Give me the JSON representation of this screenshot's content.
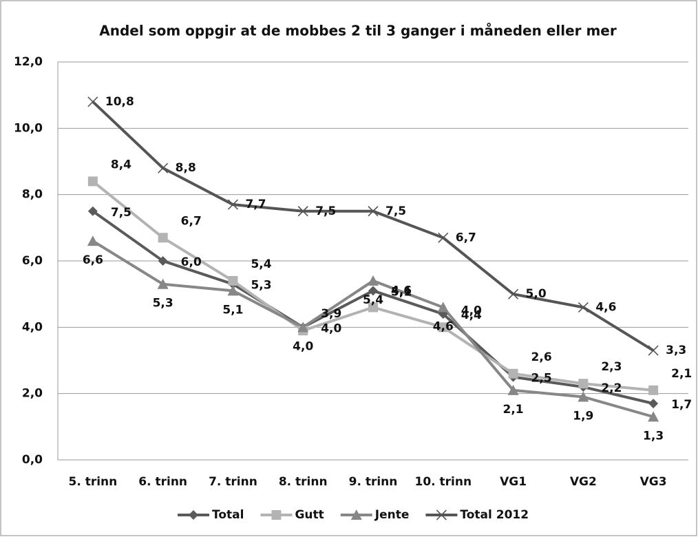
{
  "chart_data": {
    "type": "line",
    "title": "Andel som oppgir at de mobbes 2 til 3 ganger i måneden eller mer",
    "categories": [
      "5. trinn",
      "6. trinn",
      "7. trinn",
      "8. trinn",
      "9. trinn",
      "10. trinn",
      "VG1",
      "VG2",
      "VG3"
    ],
    "ylim": [
      0,
      12
    ],
    "yticks": [
      {
        "value": 0,
        "label": "0,0"
      },
      {
        "value": 2,
        "label": "2,0"
      },
      {
        "value": 4,
        "label": "4,0"
      },
      {
        "value": 6,
        "label": "6,0"
      },
      {
        "value": 8,
        "label": "8,0"
      },
      {
        "value": 10,
        "label": "10,0"
      },
      {
        "value": 12,
        "label": "12,0"
      }
    ],
    "grid": true,
    "legend": "bottom",
    "series": [
      {
        "name": "Total",
        "color": "#5a5a5a",
        "marker": "diamond",
        "values": [
          7.5,
          6.0,
          5.3,
          4.0,
          5.1,
          4.4,
          2.5,
          2.2,
          1.7
        ],
        "value_labels": [
          "7,5",
          "6,0",
          "5,3",
          "4,0",
          "5,1",
          "4,4",
          "2,5",
          "2,2",
          "1,7"
        ]
      },
      {
        "name": "Gutt",
        "color": "#b3b3b3",
        "marker": "square",
        "values": [
          8.4,
          6.7,
          5.4,
          3.9,
          4.6,
          4.0,
          2.6,
          2.3,
          2.1
        ],
        "value_labels": [
          "8,4",
          "6,7",
          "5,4",
          "3,9",
          "4,6",
          "4,0",
          "2,6",
          "2,3",
          "2,1"
        ]
      },
      {
        "name": "Jente",
        "color": "#878787",
        "marker": "triangle",
        "values": [
          6.6,
          5.3,
          5.1,
          4.0,
          5.4,
          4.6,
          2.1,
          1.9,
          1.3
        ],
        "value_labels": [
          "6,6",
          "5,3",
          "5,1",
          "4,0",
          "5,4",
          "4,6",
          "2,1",
          "1,9",
          "1,3"
        ]
      },
      {
        "name": "Total 2012",
        "color": "#555555",
        "marker": "x",
        "values": [
          10.8,
          8.8,
          7.7,
          7.5,
          7.5,
          6.7,
          5.0,
          4.6,
          3.3
        ],
        "value_labels": [
          "10,8",
          "8,8",
          "7,7",
          "7,5",
          "7,5",
          "6,7",
          "5,0",
          "4,6",
          "3,3"
        ]
      }
    ]
  }
}
